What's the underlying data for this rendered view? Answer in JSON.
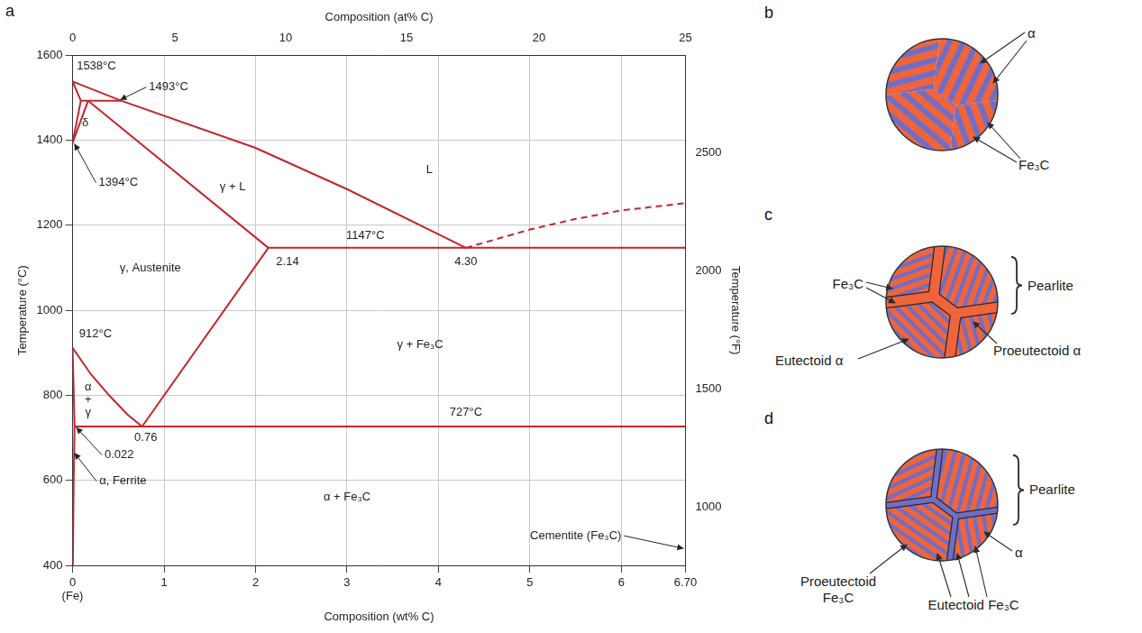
{
  "chart_data": {
    "type": "line",
    "panel_label": "a",
    "x_label": "Composition (wt% C)",
    "x2_label": "Composition (at% C)",
    "y_label": "Temperature (°C)",
    "y2_label": "Temperature (°F)",
    "xlim": [
      0,
      6.7
    ],
    "xticks": [
      {
        "value": 0,
        "label": "0\n(Fe)"
      },
      1,
      2,
      3,
      4,
      5,
      6,
      {
        "value": 6.7,
        "label": "6.70"
      }
    ],
    "x2lim": [
      0,
      6.7
    ],
    "x2ticks": [
      {
        "value": 0,
        "label": "0"
      },
      {
        "value": 1.12,
        "label": "5"
      },
      {
        "value": 2.33,
        "label": "10"
      },
      {
        "value": 3.65,
        "label": "15"
      },
      {
        "value": 5.1,
        "label": "20"
      },
      {
        "value": 6.7,
        "label": "25"
      }
    ],
    "ylim": [
      400,
      1600
    ],
    "yticks": [
      400,
      600,
      800,
      1000,
      1200,
      1400,
      1600
    ],
    "y2lim": [
      752,
      2912
    ],
    "y2ticks": [
      1000,
      1500,
      2000,
      2500
    ],
    "grid": true,
    "color": "#c4262e",
    "series": [
      {
        "x": [
          0,
          0.53,
          2.0,
          3.0,
          4.3
        ],
        "values": [
          1538,
          1493,
          1382,
          1285,
          1147
        ],
        "line_style": "solid"
      },
      {
        "x": [
          4.3,
          5.0,
          5.5,
          6.0,
          6.7
        ],
        "values": [
          1147,
          1190,
          1215,
          1235,
          1252
        ],
        "line_style": "dashed"
      },
      {
        "x": [
          0,
          0.09
        ],
        "values": [
          1538,
          1493
        ],
        "line_style": "solid"
      },
      {
        "x": [
          0.09,
          0.53
        ],
        "values": [
          1493,
          1493
        ],
        "line_style": "solid"
      },
      {
        "x": [
          0,
          0.09
        ],
        "values": [
          1394,
          1493
        ],
        "line_style": "solid"
      },
      {
        "x": [
          0,
          0.17
        ],
        "values": [
          1394,
          1493
        ],
        "line_style": "solid"
      },
      {
        "x": [
          0.17,
          2.14
        ],
        "values": [
          1493,
          1147
        ],
        "line_style": "solid"
      },
      {
        "x": [
          2.14,
          6.7
        ],
        "values": [
          1147,
          1147
        ],
        "line_style": "solid"
      },
      {
        "x": [
          2.14,
          0.76
        ],
        "values": [
          1147,
          727
        ],
        "line_style": "solid"
      },
      {
        "x": [
          0,
          0.2,
          0.4,
          0.6,
          0.76
        ],
        "values": [
          912,
          850,
          800,
          755,
          727
        ],
        "line_style": "solid"
      },
      {
        "x": [
          0,
          0.022
        ],
        "values": [
          912,
          727
        ],
        "line_style": "solid"
      },
      {
        "x": [
          0.022,
          6.7
        ],
        "values": [
          727,
          727
        ],
        "line_style": "solid"
      },
      {
        "x": [
          0.022,
          0.012,
          0.003
        ],
        "values": [
          727,
          600,
          400
        ],
        "line_style": "solid"
      }
    ],
    "annotations": [
      {
        "text": "1538°C",
        "x": 0.26,
        "y": 1575
      },
      {
        "text": "1493°C",
        "x": 1.05,
        "y": 1525,
        "arrow_to": [
          0.52,
          1495
        ]
      },
      {
        "text": "δ",
        "x": 0.14,
        "y": 1440
      },
      {
        "text": "1394°C",
        "x": 0.5,
        "y": 1300,
        "arrow_to": [
          0.02,
          1392
        ]
      },
      {
        "text": "γ + L",
        "x": 1.75,
        "y": 1290
      },
      {
        "text": "L",
        "x": 3.9,
        "y": 1330
      },
      {
        "text": "1147°C",
        "x": 3.2,
        "y": 1175
      },
      {
        "text": "2.14",
        "x": 2.35,
        "y": 1115
      },
      {
        "text": "4.30",
        "x": 4.3,
        "y": 1115
      },
      {
        "text": "γ, Austenite",
        "x": 0.85,
        "y": 1100
      },
      {
        "text": "912°C",
        "x": 0.25,
        "y": 945
      },
      {
        "text": "γ + Fe₃C",
        "x": 3.8,
        "y": 920
      },
      {
        "text": "727°C",
        "x": 4.3,
        "y": 760
      },
      {
        "text": "α\n+\nγ",
        "x": 0.17,
        "y": 790
      },
      {
        "text": "0.76",
        "x": 0.8,
        "y": 700
      },
      {
        "text": "0.022",
        "x": 0.51,
        "y": 660,
        "arrow_to": [
          0.04,
          725
        ]
      },
      {
        "text": "α, Ferrite",
        "x": 0.55,
        "y": 598,
        "arrow_to": [
          0.02,
          665
        ]
      },
      {
        "text": "α + Fe₃C",
        "x": 3.0,
        "y": 560
      },
      {
        "text": "Cementite (Fe₃C)",
        "x": 5.5,
        "y": 470,
        "arrow_to": [
          6.68,
          440
        ]
      }
    ]
  },
  "microstructures": [
    {
      "panel_label": "b",
      "labels": {
        "alpha": "α",
        "cementite": "Fe₃C"
      }
    },
    {
      "panel_label": "c",
      "labels": {
        "pearlite": "Pearlite",
        "cementite": "Fe₃C",
        "eutectoid_alpha": "Eutectoid α",
        "proeutectoid_alpha": "Proeutectoid α"
      }
    },
    {
      "panel_label": "d",
      "labels": {
        "pearlite": "Pearlite",
        "alpha": "α",
        "proeutectoid_cementite": "Proeutectoid Fe₃C",
        "eutectoid_cementite": "Eutectoid Fe₃C"
      }
    }
  ]
}
